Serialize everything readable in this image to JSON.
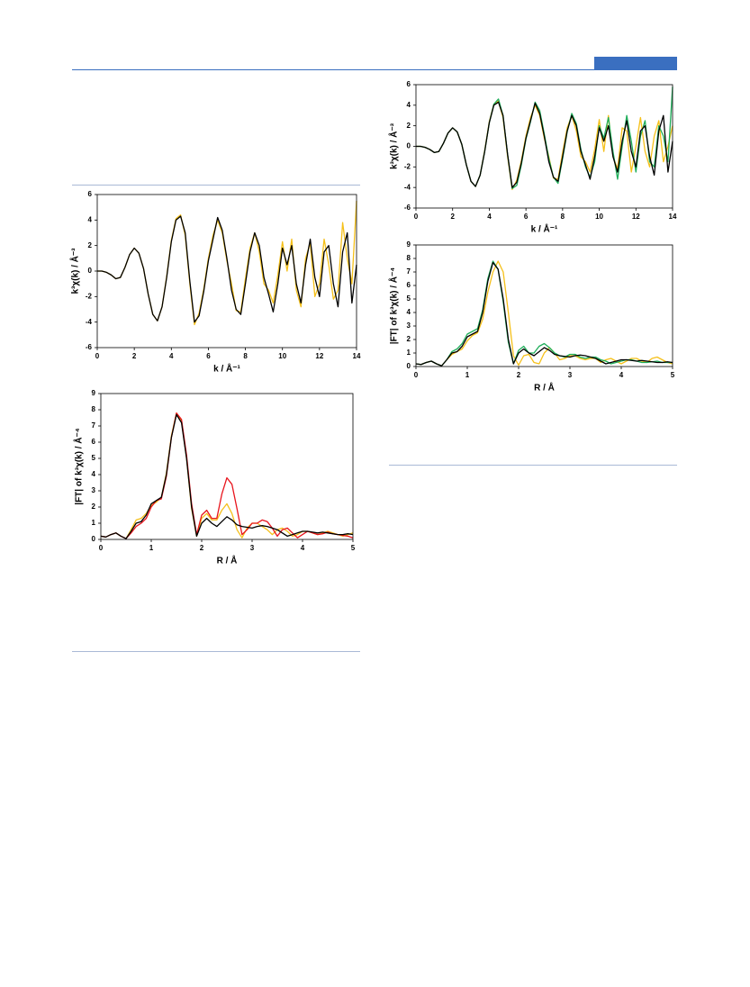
{
  "chart_data": [
    {
      "type": "line",
      "x_label": "k / Å⁻¹",
      "y_label": "k³χ(k) / Å⁻³",
      "x": [
        0,
        0.25,
        0.5,
        0.75,
        1,
        1.25,
        1.5,
        1.75,
        2,
        2.25,
        2.5,
        2.75,
        3,
        3.25,
        3.5,
        3.75,
        4,
        4.25,
        4.5,
        4.75,
        5,
        5.25,
        5.5,
        5.75,
        6,
        6.25,
        6.5,
        6.75,
        7,
        7.25,
        7.5,
        7.75,
        8,
        8.25,
        8.5,
        8.75,
        9,
        9.25,
        9.5,
        9.75,
        10,
        10.25,
        10.5,
        10.75,
        11,
        11.25,
        11.5,
        11.75,
        12,
        12.25,
        12.5,
        12.75,
        13,
        13.25,
        13.5,
        13.75,
        14
      ],
      "series": [
        {
          "color": "#f5c01a",
          "values": [
            0,
            0,
            -0.1,
            -0.3,
            -0.6,
            -0.5,
            0.3,
            1.3,
            1.8,
            1.4,
            0.2,
            -1.8,
            -3.4,
            -3.9,
            -2.8,
            -0.4,
            2.4,
            4.1,
            4.4,
            2.8,
            -1.0,
            -4.2,
            -3.3,
            -1.4,
            1.0,
            2.8,
            4.0,
            3.0,
            0.8,
            -1.0,
            -3.1,
            -3.2,
            -0.6,
            1.8,
            3.0,
            1.5,
            -1.0,
            -1.5,
            -2.5,
            -0.3,
            2.3,
            0.0,
            2.5,
            -1.5,
            -2.8,
            1.0,
            2.2,
            -2.0,
            -1.0,
            2.5,
            0.5,
            -2.2,
            -1.5,
            3.8,
            1.0,
            -1.0,
            5.5
          ]
        },
        {
          "color": "#000000",
          "values": [
            0,
            0,
            -0.1,
            -0.3,
            -0.6,
            -0.5,
            0.3,
            1.3,
            1.8,
            1.4,
            0.2,
            -1.8,
            -3.4,
            -3.9,
            -2.8,
            -0.5,
            2.3,
            4.0,
            4.3,
            3.0,
            -0.8,
            -4.0,
            -3.5,
            -1.6,
            0.8,
            2.5,
            4.2,
            3.2,
            1.0,
            -1.5,
            -3.0,
            -3.4,
            -1.0,
            1.5,
            3.0,
            2.0,
            -0.5,
            -1.8,
            -3.2,
            -1.0,
            1.8,
            0.5,
            2.0,
            -1.0,
            -2.5,
            0.5,
            2.5,
            -0.5,
            -2.0,
            1.5,
            2.0,
            -1.0,
            -2.8,
            1.5,
            3.0,
            -2.5,
            0.5
          ]
        }
      ],
      "xlim": [
        0,
        14
      ],
      "ylim": [
        -6,
        6
      ],
      "xticks": [
        0,
        2,
        4,
        6,
        8,
        10,
        12,
        14
      ],
      "yticks": [
        -6,
        -4,
        -2,
        0,
        2,
        4,
        6
      ]
    },
    {
      "type": "line",
      "x_label": "R / Å",
      "y_label": "|FT| of k³χ(k) / Å⁻⁴",
      "x": [
        0,
        0.1,
        0.2,
        0.3,
        0.4,
        0.5,
        0.6,
        0.7,
        0.8,
        0.9,
        1,
        1.1,
        1.2,
        1.3,
        1.4,
        1.5,
        1.6,
        1.7,
        1.8,
        1.9,
        2,
        2.1,
        2.2,
        2.3,
        2.4,
        2.5,
        2.6,
        2.7,
        2.8,
        2.9,
        3,
        3.1,
        3.2,
        3.3,
        3.4,
        3.5,
        3.6,
        3.7,
        3.8,
        3.9,
        4,
        4.1,
        4.2,
        4.3,
        4.4,
        4.5,
        4.6,
        4.7,
        4.8,
        4.9,
        5
      ],
      "series": [
        {
          "color": "#f5c01a",
          "values": [
            0.2,
            0.15,
            0.3,
            0.4,
            0.2,
            0.05,
            0.6,
            1.2,
            1.3,
            1.6,
            2.1,
            2.3,
            2.6,
            4.1,
            6.4,
            7.8,
            7.3,
            5.0,
            1.9,
            0.2,
            1.3,
            1.6,
            1.2,
            1.2,
            1.8,
            2.2,
            1.6,
            0.6,
            0.1,
            0.7,
            1.0,
            1.0,
            0.8,
            0.6,
            0.3,
            0.6,
            0.7,
            0.5,
            0.2,
            0.3,
            0.5,
            0.5,
            0.4,
            0.3,
            0.4,
            0.5,
            0.4,
            0.3,
            0.2,
            0.3,
            0.4
          ]
        },
        {
          "color": "#e8141c",
          "values": [
            0.2,
            0.15,
            0.3,
            0.4,
            0.2,
            0.05,
            0.4,
            0.8,
            1.0,
            1.3,
            2.0,
            2.4,
            2.5,
            3.9,
            6.3,
            7.8,
            7.4,
            5.2,
            2.2,
            0.3,
            1.5,
            1.8,
            1.3,
            1.3,
            2.8,
            3.8,
            3.4,
            1.9,
            0.3,
            0.6,
            1.0,
            1.0,
            1.2,
            1.1,
            0.7,
            0.2,
            0.6,
            0.7,
            0.4,
            0.1,
            0.3,
            0.5,
            0.4,
            0.3,
            0.35,
            0.45,
            0.35,
            0.3,
            0.25,
            0.2,
            0.1
          ]
        },
        {
          "color": "#000000",
          "values": [
            0.2,
            0.15,
            0.3,
            0.4,
            0.2,
            0.05,
            0.5,
            1.0,
            1.1,
            1.5,
            2.2,
            2.4,
            2.6,
            4.0,
            6.3,
            7.7,
            7.2,
            5.0,
            2.0,
            0.2,
            1.0,
            1.3,
            1.0,
            0.8,
            1.1,
            1.4,
            1.2,
            0.9,
            0.8,
            0.75,
            0.7,
            0.8,
            0.85,
            0.8,
            0.7,
            0.6,
            0.4,
            0.2,
            0.3,
            0.4,
            0.5,
            0.5,
            0.45,
            0.4,
            0.45,
            0.4,
            0.35,
            0.3,
            0.3,
            0.35,
            0.3
          ]
        }
      ],
      "xlim": [
        0,
        5
      ],
      "ylim": [
        0,
        9
      ],
      "xticks": [
        0,
        1,
        2,
        3,
        4,
        5
      ],
      "yticks": [
        0,
        1,
        2,
        3,
        4,
        5,
        6,
        7,
        8,
        9
      ]
    },
    {
      "type": "line",
      "x_label": "k / Å⁻¹",
      "y_label": "k³χ(k) / Å⁻³",
      "x": [
        0,
        0.25,
        0.5,
        0.75,
        1,
        1.25,
        1.5,
        1.75,
        2,
        2.25,
        2.5,
        2.75,
        3,
        3.25,
        3.5,
        3.75,
        4,
        4.25,
        4.5,
        4.75,
        5,
        5.25,
        5.5,
        5.75,
        6,
        6.25,
        6.5,
        6.75,
        7,
        7.25,
        7.5,
        7.75,
        8,
        8.25,
        8.5,
        8.75,
        9,
        9.25,
        9.5,
        9.75,
        10,
        10.25,
        10.5,
        10.75,
        11,
        11.25,
        11.5,
        11.75,
        12,
        12.25,
        12.5,
        12.75,
        13,
        13.25,
        13.5,
        13.75,
        14
      ],
      "series": [
        {
          "color": "#f5c01a",
          "values": [
            0,
            0,
            -0.1,
            -0.3,
            -0.6,
            -0.5,
            0.3,
            1.3,
            1.8,
            1.4,
            0.2,
            -1.8,
            -3.4,
            -3.9,
            -2.8,
            -0.4,
            2.4,
            4.1,
            4.4,
            2.8,
            -1.0,
            -4.2,
            -3.3,
            -1.4,
            1.0,
            2.8,
            4.0,
            3.0,
            0.8,
            -1.0,
            -3.1,
            -3.2,
            -0.6,
            1.8,
            3.0,
            1.5,
            -1.0,
            -1.5,
            -2.5,
            -0.3,
            2.6,
            -0.5,
            3.0,
            -1.0,
            -2.2,
            1.8,
            1.5,
            -2.5,
            0.0,
            2.8,
            -0.5,
            -2.0,
            1.0,
            2.5,
            -1.5,
            0.0,
            2.0
          ]
        },
        {
          "color": "#1fae5a",
          "values": [
            0,
            0,
            -0.1,
            -0.3,
            -0.6,
            -0.5,
            0.3,
            1.3,
            1.8,
            1.4,
            0.2,
            -1.8,
            -3.4,
            -3.9,
            -2.8,
            -0.5,
            2.3,
            4.1,
            4.6,
            3.0,
            -0.8,
            -4.1,
            -3.8,
            -1.8,
            0.7,
            2.4,
            4.3,
            3.5,
            1.2,
            -1.2,
            -3.0,
            -3.6,
            -1.2,
            1.4,
            3.2,
            2.2,
            -0.3,
            -2.0,
            -3.0,
            -1.5,
            2.0,
            0.8,
            2.8,
            -0.5,
            -3.2,
            0.0,
            3.0,
            0.5,
            -2.5,
            1.0,
            2.5,
            -1.5,
            -2.0,
            2.0,
            1.0,
            -1.5,
            5.8
          ]
        },
        {
          "color": "#000000",
          "values": [
            0,
            0,
            -0.1,
            -0.3,
            -0.6,
            -0.5,
            0.3,
            1.3,
            1.8,
            1.4,
            0.2,
            -1.8,
            -3.4,
            -3.9,
            -2.8,
            -0.5,
            2.3,
            4.0,
            4.3,
            3.0,
            -0.8,
            -4.0,
            -3.5,
            -1.6,
            0.8,
            2.5,
            4.2,
            3.2,
            1.0,
            -1.5,
            -3.0,
            -3.4,
            -1.0,
            1.5,
            3.0,
            2.0,
            -0.5,
            -1.8,
            -3.2,
            -1.0,
            1.8,
            0.5,
            2.0,
            -1.0,
            -2.5,
            0.5,
            2.5,
            -0.5,
            -2.0,
            1.5,
            2.0,
            -1.0,
            -2.8,
            1.5,
            3.0,
            -2.5,
            0.5
          ]
        }
      ],
      "xlim": [
        0,
        14
      ],
      "ylim": [
        -6,
        6
      ],
      "xticks": [
        0,
        2,
        4,
        6,
        8,
        10,
        12,
        14
      ],
      "yticks": [
        -6,
        -4,
        -2,
        0,
        2,
        4,
        6
      ]
    },
    {
      "type": "line",
      "x_label": "R / Å",
      "y_label": "|FT| of k³χ(k) / Å⁻⁴",
      "x": [
        0,
        0.1,
        0.2,
        0.3,
        0.4,
        0.5,
        0.6,
        0.7,
        0.8,
        0.9,
        1,
        1.1,
        1.2,
        1.3,
        1.4,
        1.5,
        1.6,
        1.7,
        1.8,
        1.9,
        2,
        2.1,
        2.2,
        2.3,
        2.4,
        2.5,
        2.6,
        2.7,
        2.8,
        2.9,
        3,
        3.1,
        3.2,
        3.3,
        3.4,
        3.5,
        3.6,
        3.7,
        3.8,
        3.9,
        4,
        4.1,
        4.2,
        4.3,
        4.4,
        4.5,
        4.6,
        4.7,
        4.8,
        4.9,
        5
      ],
      "series": [
        {
          "color": "#f5c01a",
          "values": [
            0.2,
            0.15,
            0.3,
            0.4,
            0.2,
            0.05,
            0.5,
            0.9,
            1.1,
            1.3,
            1.9,
            2.3,
            2.5,
            3.5,
            5.5,
            7.0,
            7.8,
            7.0,
            4.0,
            0.8,
            0.1,
            0.8,
            0.9,
            0.3,
            0.2,
            1.0,
            1.4,
            1.0,
            0.5,
            0.6,
            0.8,
            0.8,
            0.6,
            0.5,
            0.6,
            0.6,
            0.3,
            0.5,
            0.6,
            0.4,
            0.2,
            0.4,
            0.6,
            0.6,
            0.4,
            0.3,
            0.6,
            0.7,
            0.5,
            0.3,
            0.2
          ]
        },
        {
          "color": "#1fae5a",
          "values": [
            0.2,
            0.15,
            0.3,
            0.4,
            0.2,
            0.05,
            0.5,
            1.1,
            1.3,
            1.7,
            2.4,
            2.6,
            2.8,
            4.2,
            6.5,
            7.8,
            7.2,
            4.8,
            1.8,
            0.2,
            1.2,
            1.5,
            1.0,
            1.0,
            1.5,
            1.7,
            1.4,
            1.0,
            0.8,
            0.7,
            0.9,
            0.9,
            0.7,
            0.6,
            0.7,
            0.7,
            0.5,
            0.4,
            0.2,
            0.3,
            0.4,
            0.5,
            0.5,
            0.4,
            0.3,
            0.3,
            0.35,
            0.4,
            0.3,
            0.3,
            0.3
          ]
        },
        {
          "color": "#000000",
          "values": [
            0.2,
            0.15,
            0.3,
            0.4,
            0.2,
            0.05,
            0.5,
            1.0,
            1.1,
            1.5,
            2.2,
            2.4,
            2.6,
            4.0,
            6.3,
            7.7,
            7.2,
            5.0,
            2.0,
            0.2,
            1.0,
            1.3,
            1.0,
            0.8,
            1.1,
            1.4,
            1.2,
            0.9,
            0.8,
            0.75,
            0.7,
            0.8,
            0.85,
            0.8,
            0.7,
            0.6,
            0.4,
            0.2,
            0.3,
            0.4,
            0.5,
            0.5,
            0.45,
            0.4,
            0.45,
            0.4,
            0.35,
            0.3,
            0.3,
            0.35,
            0.3
          ]
        }
      ],
      "xlim": [
        0,
        5
      ],
      "ylim": [
        0,
        9
      ],
      "xticks": [
        0,
        1,
        2,
        3,
        4,
        5
      ],
      "yticks": [
        0,
        1,
        2,
        3,
        4,
        5,
        6,
        7,
        8,
        9
      ]
    }
  ]
}
